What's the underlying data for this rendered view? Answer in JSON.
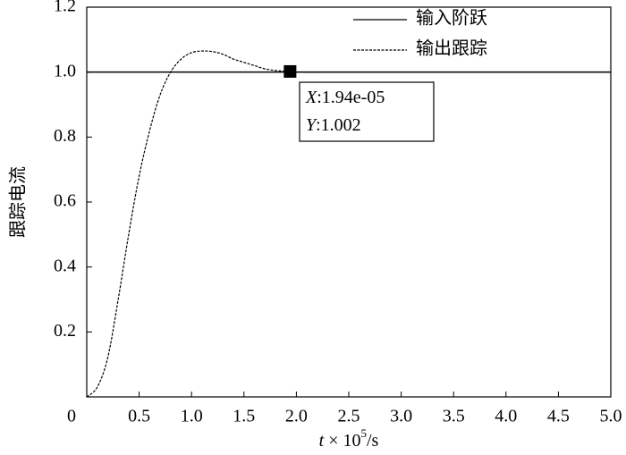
{
  "chart_data": {
    "type": "line",
    "xlabel": {
      "var": "t",
      "text": " × 10",
      "exp": "5",
      "unit": "/s"
    },
    "ylabel": "跟踪电流",
    "xlim": [
      0,
      5
    ],
    "ylim": [
      0,
      1.2
    ],
    "xticks": [
      0,
      0.5,
      {
        "value": 1,
        "label": "1.0"
      },
      1.5,
      {
        "value": 2,
        "label": "2.0"
      },
      2.5,
      {
        "value": 3,
        "label": "3.0"
      },
      3.5,
      {
        "value": 4,
        "label": "4.0"
      },
      4.5,
      {
        "value": 5,
        "label": "5.0"
      }
    ],
    "yticks": [
      0.2,
      0.4,
      0.6,
      0.8,
      {
        "value": 1,
        "label": "1.0"
      },
      1.2
    ],
    "legend": "upper-right",
    "series": [
      {
        "name": "输入阶跃",
        "color": "#000000",
        "dash": "solid",
        "x": [
          0,
          5
        ],
        "values": [
          1,
          1
        ]
      },
      {
        "name": "输出跟踪",
        "color": "#000000",
        "dash": "dashed",
        "x": [
          0,
          0.1,
          0.2,
          0.3,
          0.4,
          0.5,
          0.6,
          0.7,
          0.8,
          0.9,
          1.0,
          1.1,
          1.2,
          1.3,
          1.4,
          1.5,
          1.6,
          1.7,
          1.8,
          1.9,
          2.0,
          2.5,
          3.0,
          3.5,
          4.0,
          4.5,
          5.0
        ],
        "values": [
          0,
          0.03,
          0.12,
          0.3,
          0.5,
          0.68,
          0.82,
          0.93,
          1.0,
          1.04,
          1.06,
          1.065,
          1.063,
          1.055,
          1.04,
          1.03,
          1.02,
          1.01,
          1.005,
          1.002,
          1.0,
          1.0,
          1.0,
          1.0,
          1.0,
          1.0,
          1.0
        ]
      }
    ],
    "datatip": {
      "x": 1.94,
      "y": 1.002,
      "x_label": "X",
      "x_text": ":1.94e-05",
      "y_label": "Y",
      "y_text": ":1.002"
    }
  }
}
